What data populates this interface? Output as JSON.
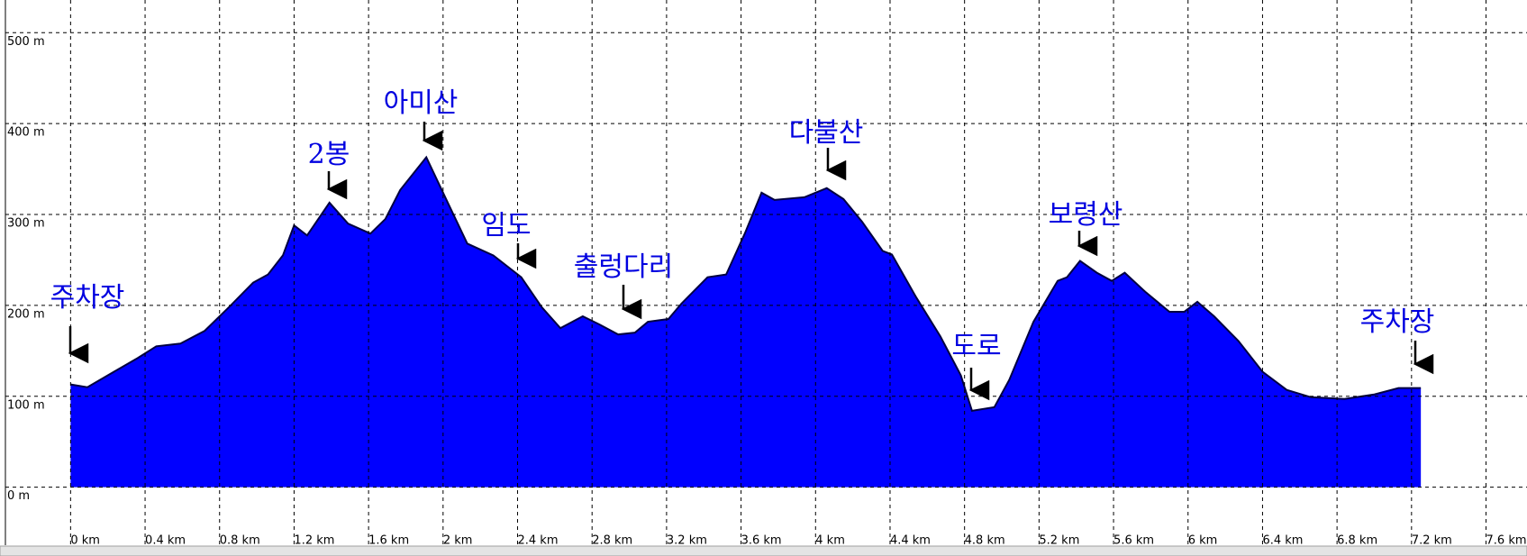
{
  "chart_data": {
    "type": "area",
    "color": "#0000ff",
    "edge_color": "#000040",
    "grid": true,
    "xlim": [
      -0.35,
      7.82
    ],
    "ylim": [
      -43,
      536
    ],
    "xticks": [
      {
        "value": 0,
        "label": "0 km"
      },
      {
        "value": 0.4,
        "label": "0.4 km"
      },
      {
        "value": 0.8,
        "label": "0.8 km"
      },
      {
        "value": 1.2,
        "label": "1.2 km"
      },
      {
        "value": 1.6,
        "label": "1.6 km"
      },
      {
        "value": 2,
        "label": "2 km"
      },
      {
        "value": 2.4,
        "label": "2.4 km"
      },
      {
        "value": 2.8,
        "label": "2.8 km"
      },
      {
        "value": 3.2,
        "label": "3.2 km"
      },
      {
        "value": 3.6,
        "label": "3.6 km"
      },
      {
        "value": 4,
        "label": "4 km"
      },
      {
        "value": 4.4,
        "label": "4.4 km"
      },
      {
        "value": 4.8,
        "label": "4.8 km"
      },
      {
        "value": 5.2,
        "label": "5.2 km"
      },
      {
        "value": 5.6,
        "label": "5.6 km"
      },
      {
        "value": 6,
        "label": "6 km"
      },
      {
        "value": 6.4,
        "label": "6.4 km"
      },
      {
        "value": 6.8,
        "label": "6.8 km"
      },
      {
        "value": 7.2,
        "label": "7.2 km"
      },
      {
        "value": 7.6,
        "label": "7.6 km"
      }
    ],
    "yticks": [
      {
        "value": 0,
        "label": "0 m"
      },
      {
        "value": 100,
        "label": "100 m"
      },
      {
        "value": 200,
        "label": "200 m"
      },
      {
        "value": 300,
        "label": "300 m"
      },
      {
        "value": 400,
        "label": "400 m"
      },
      {
        "value": 500,
        "label": "500 m"
      }
    ],
    "x": [
      0,
      0.09,
      0.25,
      0.36,
      0.46,
      0.59,
      0.72,
      0.85,
      0.98,
      1.06,
      1.14,
      1.2,
      1.27,
      1.39,
      1.49,
      1.61,
      1.69,
      1.77,
      1.91,
      2.03,
      2.13,
      2.27,
      2.42,
      2.53,
      2.63,
      2.75,
      2.84,
      2.94,
      3.03,
      3.1,
      3.21,
      3.28,
      3.42,
      3.52,
      3.62,
      3.71,
      3.78,
      3.94,
      4.06,
      4.15,
      4.25,
      4.36,
      4.41,
      4.54,
      4.67,
      4.78,
      4.84,
      4.96,
      5.04,
      5.17,
      5.3,
      5.35,
      5.42,
      5.51,
      5.59,
      5.66,
      5.77,
      5.9,
      5.98,
      6.05,
      6.14,
      6.27,
      6.4,
      6.53,
      6.66,
      6.84,
      7.0,
      7.13,
      7.25
    ],
    "values": [
      113,
      110,
      129,
      142,
      155,
      158,
      172,
      198,
      225,
      234,
      255,
      288,
      277,
      313,
      290,
      279,
      295,
      327,
      363,
      311,
      268,
      255,
      231,
      198,
      175,
      188,
      179,
      168,
      170,
      182,
      185,
      202,
      231,
      234,
      279,
      324,
      316,
      319,
      329,
      317,
      292,
      260,
      256,
      209,
      166,
      123,
      84,
      88,
      118,
      182,
      227,
      231,
      249,
      236,
      227,
      236,
      215,
      193,
      193,
      204,
      188,
      161,
      127,
      107,
      99,
      97,
      102,
      109,
      109
    ],
    "annotations": [
      "주차장",
      "2봉",
      "아미산",
      "임도",
      "출렁다리",
      "다불산",
      "도로",
      "보령산",
      "주차장"
    ]
  }
}
